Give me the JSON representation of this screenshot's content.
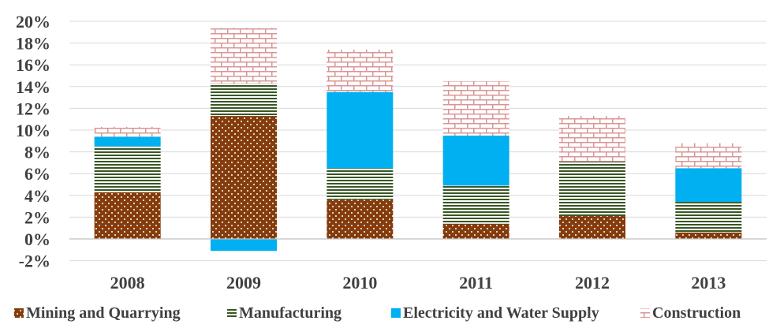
{
  "chart_data": {
    "type": "bar",
    "stacked": true,
    "categories": [
      "2008",
      "2009",
      "2010",
      "2011",
      "2012",
      "2013"
    ],
    "y_ticks": [
      "-2%",
      "0%",
      "2%",
      "4%",
      "6%",
      "8%",
      "10%",
      "12%",
      "14%",
      "16%",
      "18%",
      "20%"
    ],
    "ylim": [
      -2,
      20
    ],
    "unit": "%",
    "grid": true,
    "legend_position": "bottom",
    "series": [
      {
        "name": "Mining and Quarrying",
        "values": [
          4.3,
          11.3,
          3.6,
          1.4,
          2.1,
          0.6
        ],
        "color": "#843c0c",
        "pattern": "dots"
      },
      {
        "name": "Manufacturing",
        "values": [
          4.2,
          3.0,
          2.9,
          3.5,
          5.0,
          2.8
        ],
        "color": "#385723",
        "pattern": "horizontal-lines"
      },
      {
        "name": "Electricity and Water Supply",
        "values": [
          0.9,
          -1.1,
          7.0,
          4.6,
          0.0,
          3.1
        ],
        "color": "#00b0f0",
        "pattern": "solid"
      },
      {
        "name": "Construction",
        "values": [
          0.9,
          5.1,
          3.9,
          5.0,
          4.2,
          2.3
        ],
        "color": "#d99694",
        "pattern": "bricks"
      }
    ]
  }
}
